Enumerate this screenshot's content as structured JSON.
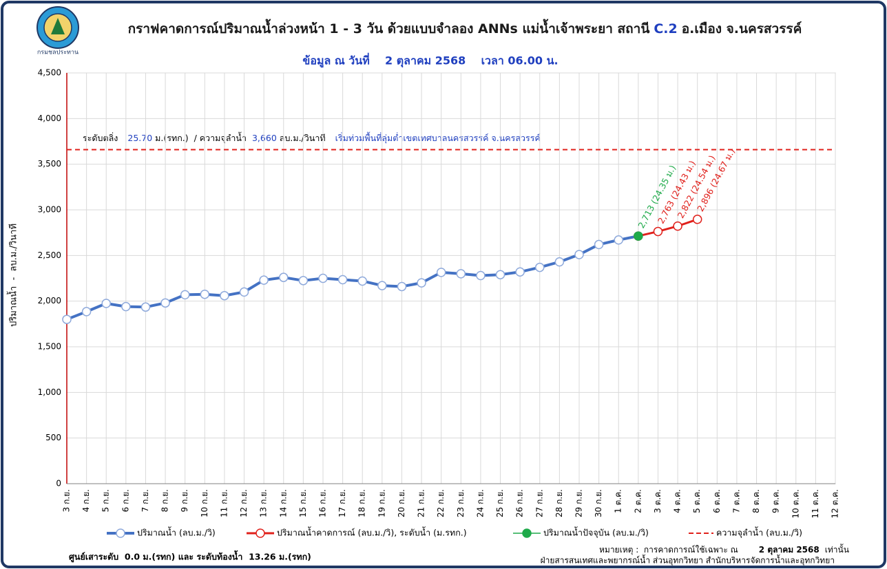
{
  "chart_data": {
    "type": "line",
    "logo_text": "กรมชลประทาน",
    "title": [
      "กราฟคาดการณ์ปริมาณน้ำล่วงหน้า 1 - 3 วัน  ด้วยแบบจำลอง ANNs แม่น้ำเจ้าพระยา สถานี",
      "C.2",
      "อ.เมือง จ.นครสวรรค์"
    ],
    "subtitle": "ข้อมูล ณ วันที่    2 ตุลาคม 2568    เวลา 06.00 น.",
    "y_label": "ปริมาณน้ำ  -  ลบ.ม./วินาที",
    "categories": [
      "3 ก.ย.",
      "4 ก.ย.",
      "5 ก.ย.",
      "6 ก.ย.",
      "7 ก.ย.",
      "8 ก.ย.",
      "9 ก.ย.",
      "10 ก.ย.",
      "11 ก.ย.",
      "12 ก.ย.",
      "13 ก.ย.",
      "14 ก.ย.",
      "15 ก.ย.",
      "16 ก.ย.",
      "17 ก.ย.",
      "18 ก.ย.",
      "19 ก.ย.",
      "20 ก.ย.",
      "21 ก.ย.",
      "22 ก.ย.",
      "23 ก.ย.",
      "24 ก.ย.",
      "25 ก.ย.",
      "26 ก.ย.",
      "27 ก.ย.",
      "28 ก.ย.",
      "29 ก.ย.",
      "30 ก.ย.",
      "1 ต.ค.",
      "2 ต.ค.",
      "3 ต.ค.",
      "4 ต.ค.",
      "5 ต.ค.",
      "6 ต.ค.",
      "7 ต.ค.",
      "8 ต.ค.",
      "9 ต.ค.",
      "10 ต.ค.",
      "11 ต.ค.",
      "12 ต.ค."
    ],
    "series": [
      {
        "name": "ปริมาณน้ำ  (ลบ.ม./วิ)",
        "color": "#4472c4",
        "marker": "hollow",
        "values": [
          1800,
          1885,
          1975,
          1940,
          1935,
          1980,
          2070,
          2075,
          2060,
          2100,
          2230,
          2260,
          2225,
          2250,
          2235,
          2220,
          2170,
          2160,
          2200,
          2315,
          2300,
          2280,
          2290,
          2320,
          2370,
          2430,
          2510,
          2620,
          2670,
          2713,
          null,
          null,
          null,
          null,
          null,
          null,
          null,
          null,
          null,
          null
        ]
      },
      {
        "name": "ปริมาณน้ำคาดการณ์  (ลบ.ม./วิ), ระดับน้ำ  (ม.รทก.)",
        "color": "#e0201b",
        "marker": "hollow",
        "values": [
          null,
          null,
          null,
          null,
          null,
          null,
          null,
          null,
          null,
          null,
          null,
          null,
          null,
          null,
          null,
          null,
          null,
          null,
          null,
          null,
          null,
          null,
          null,
          null,
          null,
          null,
          null,
          null,
          null,
          2713,
          2763,
          2822,
          2896,
          null,
          null,
          null,
          null,
          null,
          null,
          null
        ],
        "value_labels": [
          null,
          null,
          null,
          null,
          null,
          null,
          null,
          null,
          null,
          null,
          null,
          null,
          null,
          null,
          null,
          null,
          null,
          null,
          null,
          null,
          null,
          null,
          null,
          null,
          null,
          null,
          null,
          null,
          null,
          null,
          "2,763 (24.43 ม.)",
          "2,822 (24.54 ม.)",
          "2,896 (24.67 ม.)",
          null,
          null,
          null,
          null,
          null,
          null,
          null
        ]
      },
      {
        "name": "ปริมาณน้ำปัจจุบัน  (ลบ.ม./วิ)",
        "color": "#1faa4a",
        "marker": "filled",
        "values": [
          null,
          null,
          null,
          null,
          null,
          null,
          null,
          null,
          null,
          null,
          null,
          null,
          null,
          null,
          null,
          null,
          null,
          null,
          null,
          null,
          null,
          null,
          null,
          null,
          null,
          null,
          null,
          null,
          null,
          2713,
          null,
          null,
          null,
          null,
          null,
          null,
          null,
          null,
          null,
          null
        ],
        "value_labels": [
          null,
          null,
          null,
          null,
          null,
          null,
          null,
          null,
          null,
          null,
          null,
          null,
          null,
          null,
          null,
          null,
          null,
          null,
          null,
          null,
          null,
          null,
          null,
          null,
          null,
          null,
          null,
          null,
          null,
          "2,713 (24.35 ม.)",
          null,
          null,
          null,
          null,
          null,
          null,
          null,
          null,
          null,
          null
        ]
      }
    ],
    "threshold": {
      "name": "ความจุลำน้ำ  (ลบ.ม./วิ)",
      "value": 3660,
      "label": "3,660",
      "color": "#e0201b"
    },
    "annotation": {
      "bank_label": "ระดับตลิ่ง",
      "bank_level": "25.70",
      "bank_unit": "ม.(รทก.)  / ความจุลำน้ำ",
      "capacity_unit": "ลบ.ม./วินาที",
      "note": "เริ่มท่วมพื้นที่ลุ่มต่ำเขตเทศบาลนครสวรรค์ จ.นครสวรรค์"
    },
    "ylim": [
      0,
      4500
    ],
    "yticks": [
      0,
      500,
      {
        "value": 1000,
        "label": "1,000"
      },
      {
        "value": 1500,
        "label": "1,500"
      },
      {
        "value": 2000,
        "label": "2,000"
      },
      {
        "value": 2500,
        "label": "2,500"
      },
      {
        "value": 3000,
        "label": "3,000"
      },
      {
        "value": 3500,
        "label": "3,500"
      },
      {
        "value": 4000,
        "label": "4,000"
      },
      {
        "value": 4500,
        "label": "4,500"
      }
    ],
    "grid": true,
    "footer": {
      "gauge": "ศูนย์เสาระดับ  0.0 ม.(รทก) และ ระดับท้องน้ำ  13.26 ม.(รทก)",
      "note_label": "หมายเหตุ :  การคาดการณ์ใช้เฉพาะ ณ",
      "note_date": "2 ตุลาคม 2568",
      "note_end": "เท่านั้น",
      "agency": "ฝ่ายสารสนเทศและพยากรณ์น้ำ ส่วนอุทกวิทยา สำนักบริหารจัดการน้ำและอุทกวิทยา"
    }
  }
}
